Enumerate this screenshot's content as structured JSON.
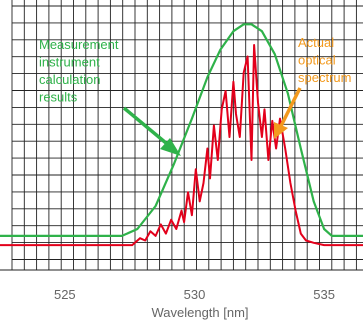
{
  "chart_data": {
    "type": "line",
    "title": "",
    "xlabel": "Wavelength [nm]",
    "ylabel": "",
    "xlim": [
      522.5,
      536.5
    ],
    "ylim": [
      0,
      100
    ],
    "x_ticks": [
      525,
      530,
      535
    ],
    "x_tick_labels": [
      "525",
      "530",
      "535"
    ],
    "grid": true,
    "legend": "none",
    "series": [
      {
        "color": "#2fb24a",
        "x": [
          522.5,
          527.2,
          527.8,
          528.5,
          529.2,
          529.9,
          530.5,
          531.0,
          531.5,
          531.9,
          532.2,
          532.6,
          533.1,
          533.6,
          534.1,
          534.6,
          535.0,
          535.3,
          536.5
        ],
        "y": [
          7,
          7,
          10,
          20,
          38,
          58,
          76,
          88,
          96,
          99,
          99,
          96,
          86,
          69,
          45,
          22,
          10,
          7,
          7
        ]
      },
      {
        "color": "#e3001b",
        "x": [
          522.5,
          527.6,
          527.9,
          528.1,
          528.3,
          528.5,
          528.7,
          528.9,
          529.1,
          529.3,
          529.5,
          529.6,
          529.75,
          529.9,
          530.05,
          530.2,
          530.35,
          530.5,
          530.6,
          530.75,
          530.9,
          531.05,
          531.2,
          531.35,
          531.5,
          531.6,
          531.75,
          531.9,
          532.05,
          532.2,
          532.3,
          532.45,
          532.6,
          532.7,
          532.85,
          533.0,
          533.15,
          533.3,
          533.5,
          533.7,
          533.9,
          534.1,
          534.3,
          534.6,
          535.0,
          536.5
        ],
        "y": [
          3,
          3,
          6,
          5,
          9,
          7,
          12,
          8,
          14,
          10,
          18,
          13,
          26,
          16,
          36,
          22,
          30,
          45,
          32,
          55,
          40,
          62,
          70,
          50,
          74,
          60,
          50,
          78,
          85,
          40,
          90,
          65,
          50,
          62,
          40,
          57,
          45,
          58,
          45,
          30,
          18,
          8,
          5,
          4,
          3,
          3
        ]
      }
    ],
    "annotations": [
      {
        "lines": [
          "Measurement",
          "instrument",
          "calculation",
          "results"
        ],
        "color": "#2fb24a"
      },
      {
        "lines": [
          "Actual",
          "optical",
          "spectrum"
        ],
        "color": "#f39a1e"
      }
    ]
  }
}
